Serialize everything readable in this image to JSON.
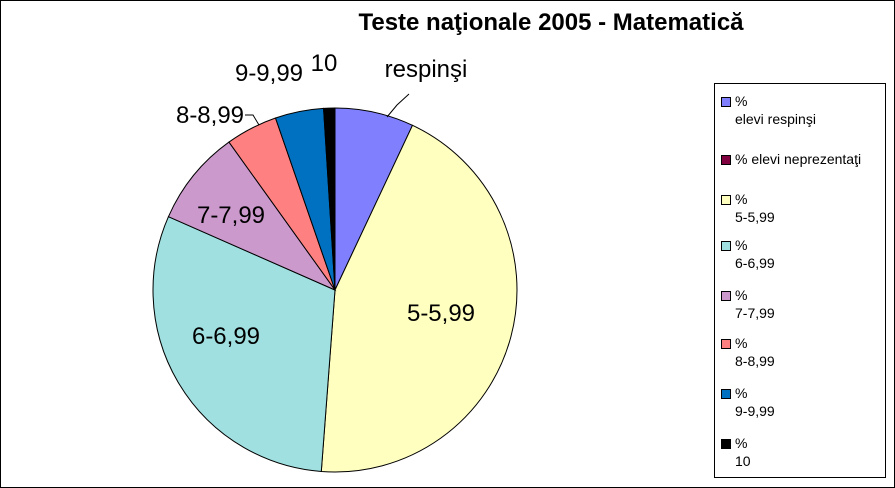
{
  "chart_data": {
    "type": "pie",
    "title": "Teste naţionale 2005 - Matematică",
    "slices": [
      {
        "label": "respinşi",
        "value": 7.0,
        "color": "#8080ff"
      },
      {
        "label": "5-5,99",
        "value": 44.2,
        "color": "#ffffc0"
      },
      {
        "label": "6-6,99",
        "value": 30.4,
        "color": "#a0e0e0"
      },
      {
        "label": "7-7,99",
        "value": 8.5,
        "color": "#cc99cc"
      },
      {
        "label": "8-8,99",
        "value": 4.6,
        "color": "#ff8080"
      },
      {
        "label": "9-9,99",
        "value": 4.3,
        "color": "#0070c0"
      },
      {
        "label": "10",
        "value": 1.0,
        "color": "#000000"
      }
    ],
    "legend": {
      "placement": "right",
      "entries": [
        {
          "text": "%\nelevi respinşi",
          "color": "#8080ff"
        },
        {
          "text": "% elevi neprezentaţi",
          "color": "#800040"
        },
        {
          "text": "%\n5-5,99",
          "color": "#ffffc0"
        },
        {
          "text": "%\n6-6,99",
          "color": "#a0e0e0"
        },
        {
          "text": "%\n7-7,99",
          "color": "#cc99cc"
        },
        {
          "text": "%\n8-8,99",
          "color": "#ff8080"
        },
        {
          "text": "%\n9-9,99",
          "color": "#0070c0"
        },
        {
          "text": "%\n 10",
          "color": "#000000"
        }
      ]
    }
  }
}
